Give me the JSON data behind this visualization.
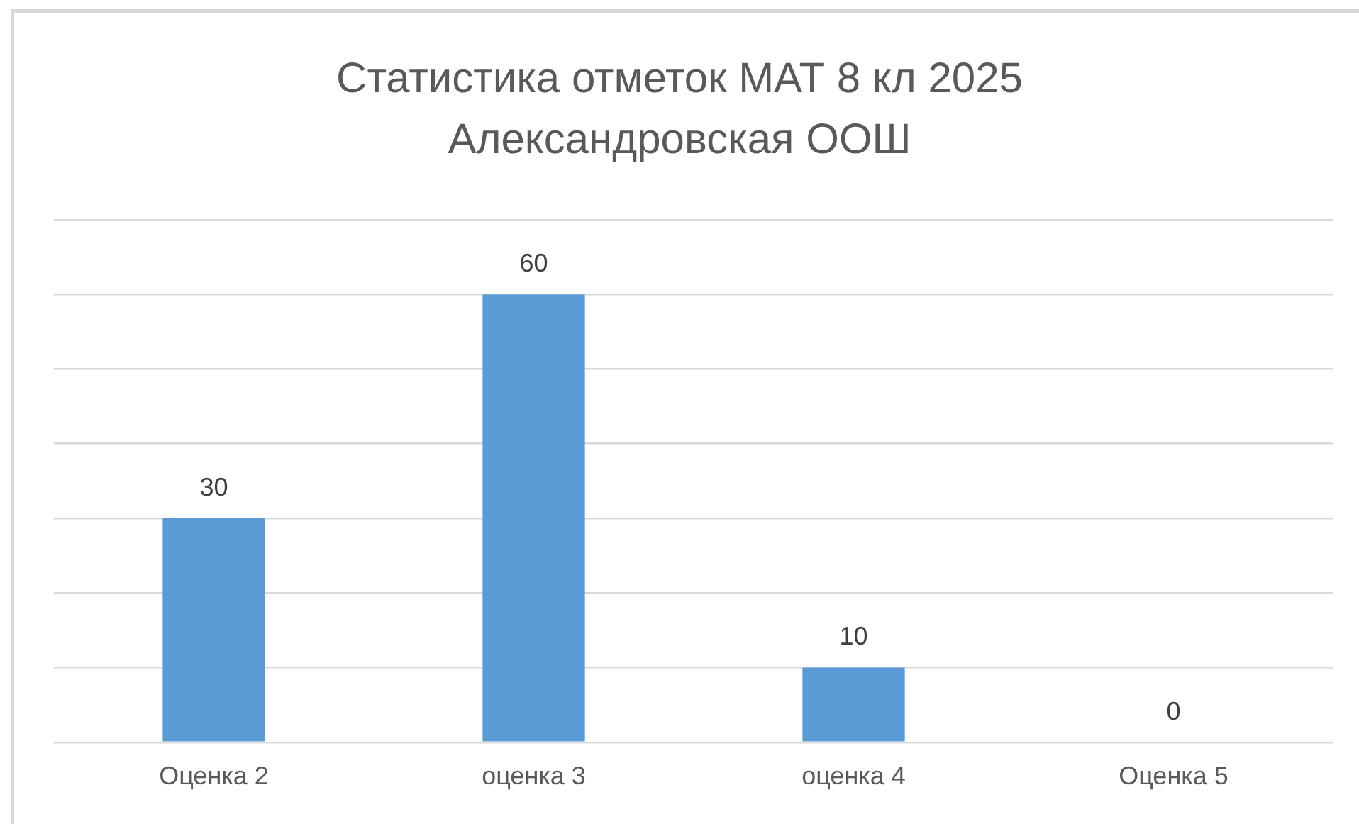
{
  "chart_data": {
    "type": "bar",
    "title": "Статистика отметок МАТ 8 кл 2025 Александровская ООШ",
    "categories": [
      "Оценка 2",
      "оценка 3",
      "оценка 4",
      "Оценка 5"
    ],
    "values": [
      30,
      60,
      10,
      0
    ],
    "color": "#5b9bd5",
    "ylim": [
      0,
      70
    ],
    "yticks": [
      {
        "value": 0,
        "label": null
      },
      {
        "value": 10,
        "label": null
      },
      {
        "value": 20,
        "label": null
      },
      {
        "value": 30,
        "label": null
      },
      {
        "value": 40,
        "label": null
      },
      {
        "value": 50,
        "label": null
      },
      {
        "value": 60,
        "label": null
      },
      {
        "value": 70,
        "label": null
      }
    ],
    "grid": "y",
    "tick_labels": "x",
    "data_labels": true,
    "legend": false
  }
}
